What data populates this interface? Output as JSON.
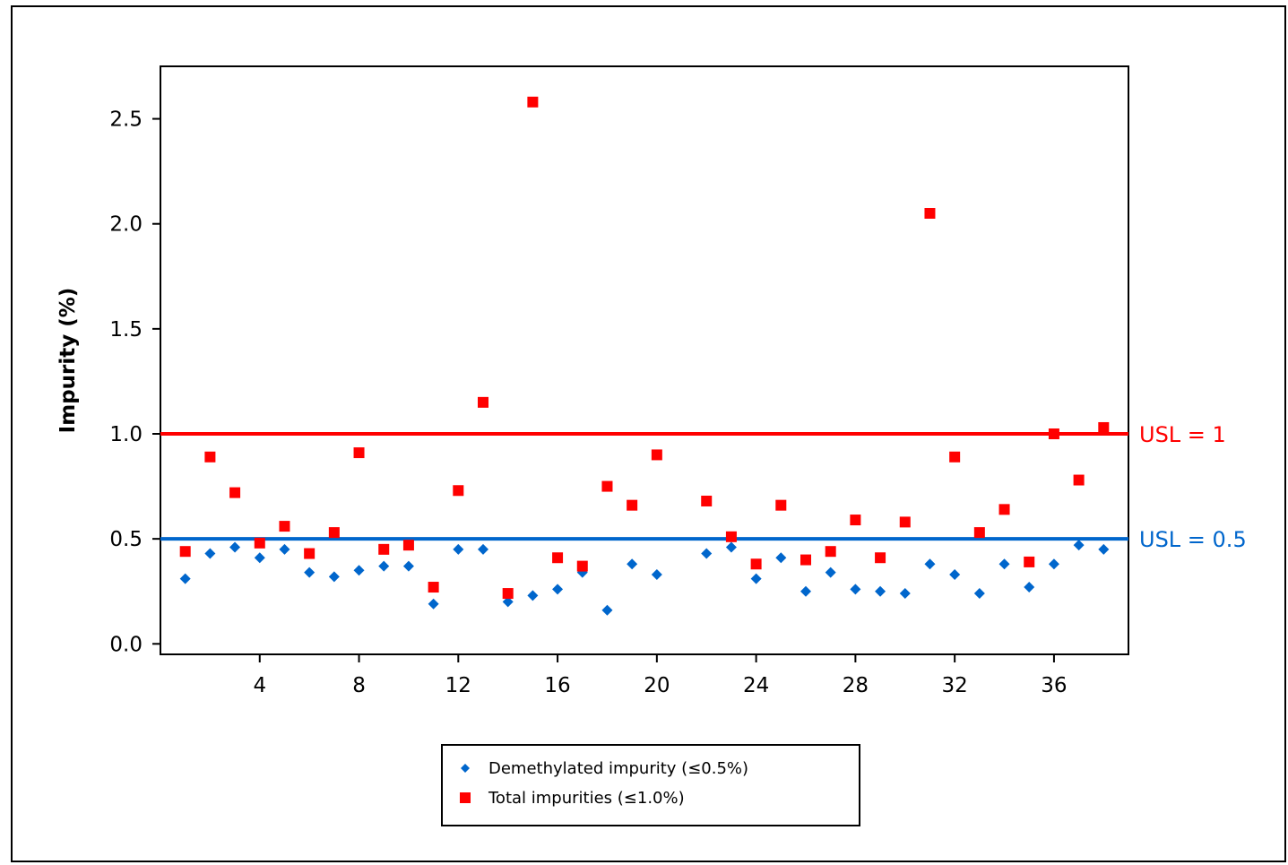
{
  "chart_data": {
    "type": "scatter",
    "title": "",
    "xlabel": "",
    "ylabel": "Impurity (%)",
    "xlim": [
      0,
      39
    ],
    "ylim": [
      -0.05,
      2.75
    ],
    "x_ticks": [
      4,
      8,
      12,
      16,
      20,
      24,
      28,
      32,
      36
    ],
    "y_ticks": [
      0.0,
      0.5,
      1.0,
      1.5,
      2.0,
      2.5
    ],
    "y_tick_labels": [
      "0.0",
      "0.5",
      "1.0",
      "1.5",
      "2.0",
      "2.5"
    ],
    "grid": false,
    "legend_position": "bottom-center",
    "reference_lines": [
      {
        "label": "USL = 1",
        "value": 1.0,
        "color": "#ff0000"
      },
      {
        "label": "USL = 0.5",
        "value": 0.5,
        "color": "#0066cc"
      }
    ],
    "series": [
      {
        "name": "Demethylated impurity (≤0.5%)",
        "marker": "diamond",
        "color": "#0066cc",
        "x": [
          1,
          2,
          3,
          4,
          5,
          6,
          7,
          8,
          9,
          10,
          11,
          12,
          13,
          14,
          15,
          16,
          17,
          18,
          19,
          20,
          22,
          23,
          24,
          25,
          26,
          27,
          28,
          29,
          30,
          31,
          32,
          33,
          34,
          35,
          36,
          37,
          38
        ],
        "y": [
          0.31,
          0.43,
          0.46,
          0.41,
          0.45,
          0.34,
          0.32,
          0.35,
          0.37,
          0.37,
          0.19,
          0.45,
          0.45,
          0.2,
          0.23,
          0.26,
          0.34,
          0.16,
          0.38,
          0.33,
          0.43,
          0.46,
          0.31,
          0.41,
          0.25,
          0.34,
          0.26,
          0.25,
          0.24,
          0.38,
          0.33,
          0.24,
          0.38,
          0.27,
          0.38,
          0.47,
          0.45
        ]
      },
      {
        "name": "Total impurities (≤1.0%)",
        "marker": "square",
        "color": "#ff0000",
        "x": [
          1,
          2,
          3,
          4,
          5,
          6,
          7,
          8,
          9,
          10,
          11,
          12,
          13,
          14,
          15,
          16,
          17,
          18,
          19,
          20,
          22,
          23,
          24,
          25,
          26,
          27,
          28,
          29,
          30,
          31,
          32,
          33,
          34,
          35,
          36,
          37,
          38
        ],
        "y": [
          0.44,
          0.89,
          0.72,
          0.48,
          0.56,
          0.43,
          0.53,
          0.91,
          0.45,
          0.47,
          0.27,
          0.73,
          1.15,
          0.24,
          2.58,
          0.41,
          0.37,
          0.75,
          0.66,
          0.9,
          0.68,
          0.51,
          0.38,
          0.66,
          0.4,
          0.44,
          0.59,
          0.41,
          0.58,
          2.05,
          0.89,
          0.53,
          0.64,
          0.39,
          1.0,
          0.78,
          1.03
        ]
      }
    ]
  }
}
